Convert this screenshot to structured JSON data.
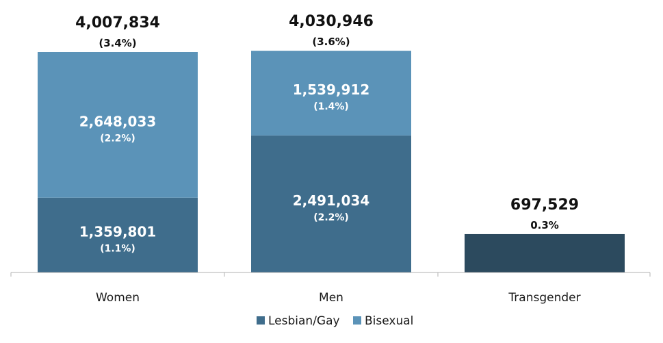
{
  "chart_data": {
    "type": "bar",
    "stacked": true,
    "categories": [
      "Women",
      "Men",
      "Transgender"
    ],
    "series": [
      {
        "name": "Lesbian/Gay",
        "color": "#3f6d8c",
        "values": [
          1359801,
          2491034,
          null
        ],
        "labels": [
          "1,359,801",
          "2,491,034",
          ""
        ],
        "pct_labels": [
          "(1.1%)",
          "(2.2%)",
          ""
        ]
      },
      {
        "name": "Bisexual",
        "color": "#5b93b8",
        "values": [
          2648033,
          1539912,
          null
        ],
        "labels": [
          "2,648,033",
          "1,539,912",
          ""
        ],
        "pct_labels": [
          "(2.2%)",
          "(1.4%)",
          ""
        ]
      },
      {
        "name": "",
        "color": "#2c4a5e",
        "values": [
          null,
          null,
          697529
        ],
        "labels": [
          "",
          "",
          ""
        ],
        "pct_labels": [
          "",
          "",
          ""
        ]
      }
    ],
    "totals": [
      {
        "value": 4007834,
        "label": "4,007,834",
        "pct": "(3.4%)"
      },
      {
        "value": 4030946,
        "label": "4,030,946",
        "pct": "(3.6%)"
      },
      {
        "value": 697529,
        "label": "697,529",
        "pct": "0.3%"
      }
    ],
    "ylim": [
      0,
      4800000
    ],
    "grid": false,
    "legend": {
      "position": "bottom",
      "entries": [
        "Lesbian/Gay",
        "Bisexual"
      ]
    },
    "title": "",
    "xlabel": "",
    "ylabel": ""
  }
}
